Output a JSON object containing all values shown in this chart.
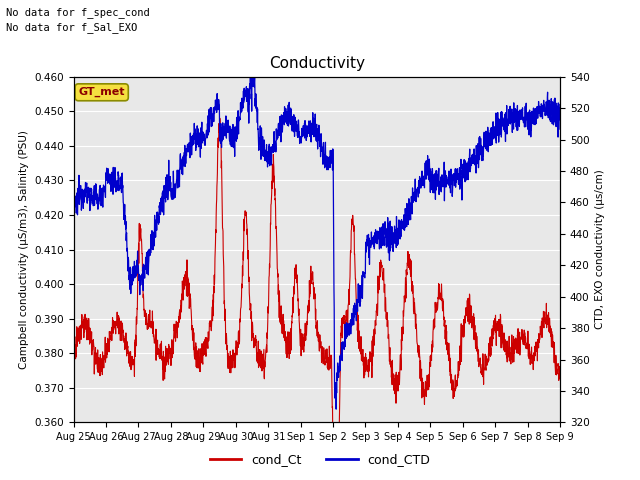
{
  "title": "Conductivity",
  "ylabel_left": "Campbell conductivity (μS/m3), Salinity (PSU)",
  "ylabel_right": "CTD, EXO conductivity (μs/cm)",
  "ylim_left": [
    0.36,
    0.46
  ],
  "ylim_right": [
    320,
    540
  ],
  "text_top_left": [
    "No data for f_spec_cond",
    "No data for f_Sal_EXO"
  ],
  "gt_met_label": "GT_met",
  "legend_labels": [
    "cond_Ct",
    "cond_CTD"
  ],
  "legend_colors": [
    "#cc0000",
    "#0000cc"
  ],
  "bg_color": "#e8e8e8",
  "fig_bg_color": "#ffffff",
  "xtick_labels": [
    "Aug 25",
    "Aug 26",
    "Aug 27",
    "Aug 28",
    "Aug 29",
    "Aug 30",
    "Aug 31",
    "Sep 1",
    "Sep 2",
    "Sep 3",
    "Sep 4",
    "Sep 5",
    "Sep 6",
    "Sep 7",
    "Sep 8",
    "Sep 9"
  ],
  "yticks_left": [
    0.36,
    0.37,
    0.38,
    0.39,
    0.4,
    0.41,
    0.42,
    0.43,
    0.44,
    0.45,
    0.46
  ],
  "yticks_right": [
    320,
    340,
    360,
    380,
    400,
    420,
    440,
    460,
    480,
    500,
    520,
    540
  ]
}
